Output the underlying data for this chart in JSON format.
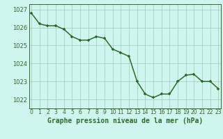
{
  "x": [
    0,
    1,
    2,
    3,
    4,
    5,
    6,
    7,
    8,
    9,
    10,
    11,
    12,
    13,
    14,
    15,
    16,
    17,
    18,
    19,
    20,
    21,
    22,
    23
  ],
  "y": [
    1026.8,
    1026.2,
    1026.1,
    1026.1,
    1025.9,
    1025.5,
    1025.3,
    1025.3,
    1025.5,
    1025.4,
    1024.8,
    1024.6,
    1024.4,
    1023.0,
    1022.3,
    1022.1,
    1022.3,
    1022.3,
    1023.0,
    1023.35,
    1023.4,
    1023.0,
    1023.0,
    1022.6
  ],
  "line_color": "#2d6a2d",
  "marker_color": "#2d6a2d",
  "bg_color": "#cef5ee",
  "grid_color": "#99ccbb",
  "axis_label_color": "#2d6a2d",
  "tick_label_color": "#2d6a2d",
  "xlabel": "Graphe pression niveau de la mer (hPa)",
  "ylim": [
    1021.5,
    1027.3
  ],
  "yticks": [
    1022,
    1023,
    1024,
    1025,
    1026,
    1027
  ],
  "xticks": [
    0,
    1,
    2,
    3,
    4,
    5,
    6,
    7,
    8,
    9,
    10,
    11,
    12,
    13,
    14,
    15,
    16,
    17,
    18,
    19,
    20,
    21,
    22,
    23
  ],
  "xtick_labels": [
    "0",
    "1",
    "2",
    "3",
    "4",
    "5",
    "6",
    "7",
    "8",
    "9",
    "10",
    "11",
    "12",
    "13",
    "14",
    "15",
    "16",
    "17",
    "18",
    "19",
    "20",
    "21",
    "22",
    "23"
  ],
  "marker_size": 3.5,
  "line_width": 1.1,
  "spine_color": "#336633"
}
